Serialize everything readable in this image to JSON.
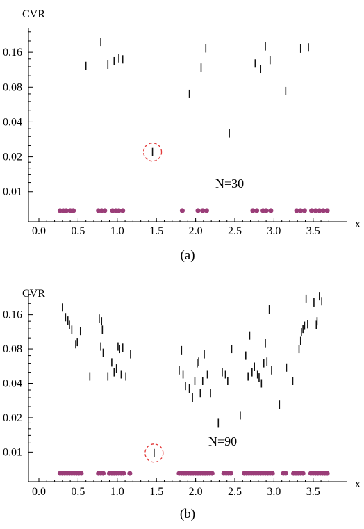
{
  "chart_data": [
    {
      "type": "scatter",
      "ylabel": "CVR",
      "xlabel": "x",
      "caption": "(a)",
      "annotation": "N=30",
      "yscale": "log",
      "xlim": [
        0.0,
        3.75
      ],
      "ylim": [
        0.0055,
        0.26
      ],
      "x_ticks": [
        "0.0",
        "0.5",
        "1.0",
        "1.5",
        "2.0",
        "2.5",
        "3.0",
        "3.5"
      ],
      "y_ticks": [
        "0.16",
        "0.08",
        "0.04",
        "0.02",
        "0.01"
      ],
      "y_tick_values": [
        0.16,
        0.08,
        0.04,
        0.02,
        0.01
      ],
      "circled_point": {
        "x": 1.45,
        "y": 0.022
      },
      "points": [
        {
          "x": 0.6,
          "y": 0.122
        },
        {
          "x": 0.79,
          "y": 0.197
        },
        {
          "x": 0.88,
          "y": 0.125
        },
        {
          "x": 0.96,
          "y": 0.134
        },
        {
          "x": 1.02,
          "y": 0.142
        },
        {
          "x": 1.07,
          "y": 0.139
        },
        {
          "x": 1.45,
          "y": 0.022
        },
        {
          "x": 1.92,
          "y": 0.07
        },
        {
          "x": 2.07,
          "y": 0.118
        },
        {
          "x": 2.13,
          "y": 0.173
        },
        {
          "x": 2.43,
          "y": 0.032
        },
        {
          "x": 2.76,
          "y": 0.128
        },
        {
          "x": 2.83,
          "y": 0.115
        },
        {
          "x": 2.89,
          "y": 0.18
        },
        {
          "x": 2.95,
          "y": 0.137
        },
        {
          "x": 3.15,
          "y": 0.074
        },
        {
          "x": 3.34,
          "y": 0.172
        },
        {
          "x": 3.44,
          "y": 0.176
        }
      ],
      "dots_x": [
        0.27,
        0.31,
        0.35,
        0.4,
        0.44,
        0.76,
        0.8,
        0.84,
        0.94,
        0.98,
        1.02,
        1.07,
        1.83,
        2.03,
        2.09,
        2.14,
        2.73,
        2.78,
        2.86,
        2.9,
        2.96,
        3.29,
        3.34,
        3.39,
        3.48,
        3.53,
        3.58,
        3.63,
        3.68
      ]
    },
    {
      "type": "scatter",
      "ylabel": "CVR",
      "xlabel": "x",
      "caption": "(b)",
      "annotation": "N=90",
      "yscale": "log",
      "xlim": [
        0.0,
        3.75
      ],
      "ylim": [
        0.0055,
        0.26
      ],
      "x_ticks": [
        "0.0",
        "0.5",
        "1.0",
        "1.5",
        "2.0",
        "2.5",
        "3.0",
        "3.5"
      ],
      "y_ticks": [
        "0.16",
        "0.08",
        "0.04",
        "0.02",
        "0.01"
      ],
      "y_tick_values": [
        0.16,
        0.08,
        0.04,
        0.02,
        0.01
      ],
      "circled_point": {
        "x": 1.47,
        "y": 0.0098
      },
      "points": [
        {
          "x": 0.3,
          "y": 0.185
        },
        {
          "x": 0.34,
          "y": 0.152
        },
        {
          "x": 0.37,
          "y": 0.142
        },
        {
          "x": 0.39,
          "y": 0.13
        },
        {
          "x": 0.42,
          "y": 0.118
        },
        {
          "x": 0.47,
          "y": 0.088
        },
        {
          "x": 0.49,
          "y": 0.092
        },
        {
          "x": 0.53,
          "y": 0.115
        },
        {
          "x": 0.65,
          "y": 0.046
        },
        {
          "x": 0.77,
          "y": 0.148
        },
        {
          "x": 0.8,
          "y": 0.14
        },
        {
          "x": 0.81,
          "y": 0.118
        },
        {
          "x": 0.79,
          "y": 0.084
        },
        {
          "x": 0.82,
          "y": 0.074
        },
        {
          "x": 0.88,
          "y": 0.046
        },
        {
          "x": 0.93,
          "y": 0.061
        },
        {
          "x": 0.96,
          "y": 0.05
        },
        {
          "x": 0.99,
          "y": 0.054
        },
        {
          "x": 1.01,
          "y": 0.084
        },
        {
          "x": 1.03,
          "y": 0.08
        },
        {
          "x": 1.05,
          "y": 0.048
        },
        {
          "x": 1.07,
          "y": 0.082
        },
        {
          "x": 1.11,
          "y": 0.046
        },
        {
          "x": 1.17,
          "y": 0.072
        },
        {
          "x": 1.47,
          "y": 0.0098
        },
        {
          "x": 1.79,
          "y": 0.052
        },
        {
          "x": 1.82,
          "y": 0.078
        },
        {
          "x": 1.84,
          "y": 0.048
        },
        {
          "x": 1.87,
          "y": 0.038
        },
        {
          "x": 1.92,
          "y": 0.036
        },
        {
          "x": 1.96,
          "y": 0.03
        },
        {
          "x": 1.99,
          "y": 0.042
        },
        {
          "x": 2.02,
          "y": 0.06
        },
        {
          "x": 2.04,
          "y": 0.062
        },
        {
          "x": 2.06,
          "y": 0.033
        },
        {
          "x": 2.09,
          "y": 0.042
        },
        {
          "x": 2.11,
          "y": 0.072
        },
        {
          "x": 2.15,
          "y": 0.048
        },
        {
          "x": 2.19,
          "y": 0.033
        },
        {
          "x": 2.29,
          "y": 0.018
        },
        {
          "x": 2.34,
          "y": 0.05
        },
        {
          "x": 2.38,
          "y": 0.048
        },
        {
          "x": 2.41,
          "y": 0.042
        },
        {
          "x": 2.46,
          "y": 0.08
        },
        {
          "x": 2.57,
          "y": 0.021
        },
        {
          "x": 2.64,
          "y": 0.07
        },
        {
          "x": 2.67,
          "y": 0.046
        },
        {
          "x": 2.69,
          "y": 0.105
        },
        {
          "x": 2.72,
          "y": 0.05
        },
        {
          "x": 2.75,
          "y": 0.056
        },
        {
          "x": 2.79,
          "y": 0.048
        },
        {
          "x": 2.81,
          "y": 0.045
        },
        {
          "x": 2.84,
          "y": 0.04
        },
        {
          "x": 2.87,
          "y": 0.06
        },
        {
          "x": 2.89,
          "y": 0.09
        },
        {
          "x": 2.91,
          "y": 0.062
        },
        {
          "x": 2.94,
          "y": 0.178
        },
        {
          "x": 2.97,
          "y": 0.052
        },
        {
          "x": 3.07,
          "y": 0.026
        },
        {
          "x": 3.16,
          "y": 0.055
        },
        {
          "x": 3.24,
          "y": 0.042
        },
        {
          "x": 3.32,
          "y": 0.08
        },
        {
          "x": 3.34,
          "y": 0.094
        },
        {
          "x": 3.35,
          "y": 0.112
        },
        {
          "x": 3.37,
          "y": 0.12
        },
        {
          "x": 3.39,
          "y": 0.128
        },
        {
          "x": 3.41,
          "y": 0.22
        },
        {
          "x": 3.43,
          "y": 0.132
        },
        {
          "x": 3.51,
          "y": 0.205
        },
        {
          "x": 3.54,
          "y": 0.13
        },
        {
          "x": 3.55,
          "y": 0.14
        },
        {
          "x": 3.58,
          "y": 0.232
        },
        {
          "x": 3.61,
          "y": 0.21
        }
      ],
      "dots_x": [
        0.27,
        0.3,
        0.33,
        0.36,
        0.39,
        0.42,
        0.45,
        0.48,
        0.51,
        0.54,
        0.76,
        0.79,
        0.82,
        0.9,
        0.93,
        0.96,
        0.99,
        1.02,
        1.05,
        1.08,
        1.16,
        1.79,
        1.82,
        1.85,
        1.88,
        1.91,
        1.94,
        1.97,
        2.0,
        2.03,
        2.06,
        2.09,
        2.12,
        2.15,
        2.18,
        2.21,
        2.36,
        2.39,
        2.42,
        2.45,
        2.62,
        2.65,
        2.68,
        2.71,
        2.74,
        2.77,
        2.8,
        2.83,
        2.86,
        2.89,
        2.92,
        2.95,
        2.98,
        3.12,
        3.15,
        3.25,
        3.28,
        3.31,
        3.34,
        3.37,
        3.47,
        3.5,
        3.53,
        3.56,
        3.59,
        3.62,
        3.65,
        3.68
      ]
    }
  ],
  "colors": {
    "dot": "#9a3d78",
    "mark": "#111111",
    "circle": "#e23a3a"
  }
}
